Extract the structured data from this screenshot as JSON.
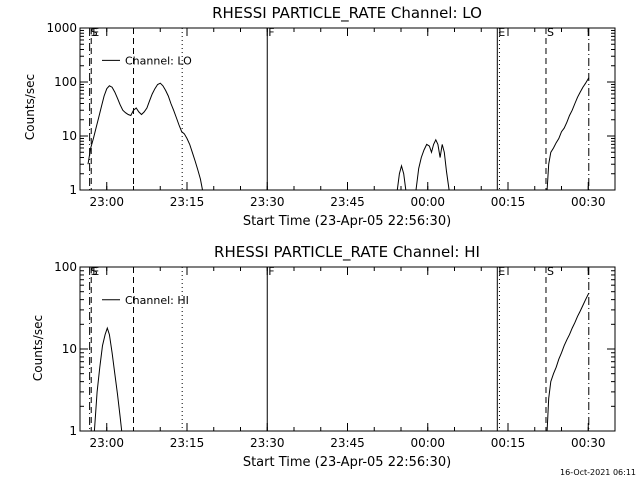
{
  "chart_data": [
    {
      "type": "line",
      "title": "RHESSI PARTICLE_RATE Channel: LO",
      "xlabel": "Start Time (23-Apr-05 22:56:30)",
      "ylabel": "Counts/sec",
      "yscale": "log",
      "ylim": [
        1,
        1000
      ],
      "xlim_minutes": [
        -1.5,
        98.5
      ],
      "y_ticks": [
        {
          "v": 1,
          "label": "1"
        },
        {
          "v": 10,
          "label": "10"
        },
        {
          "v": 100,
          "label": "100"
        },
        {
          "v": 1000,
          "label": "1000"
        }
      ],
      "x_ticks": [
        {
          "v": 3.5,
          "label": "23:00"
        },
        {
          "v": 18.5,
          "label": "23:15"
        },
        {
          "v": 33.5,
          "label": "23:30"
        },
        {
          "v": 48.5,
          "label": "23:45"
        },
        {
          "v": 63.5,
          "label": "00:00"
        },
        {
          "v": 78.5,
          "label": "00:15"
        },
        {
          "v": 93.5,
          "label": "00:30"
        }
      ],
      "legend": {
        "label": "Channel: LO",
        "position": "top-left"
      },
      "markers": [
        {
          "x": 0.3,
          "label": "S",
          "style": "dash-dot"
        },
        {
          "x": 0.6,
          "label": "E",
          "style": "dash"
        },
        {
          "x": 8.5,
          "label": "",
          "style": "dash"
        },
        {
          "x": 17.6,
          "label": "",
          "style": "dot"
        },
        {
          "x": 33.5,
          "label": "F",
          "style": "solid"
        },
        {
          "x": 76.5,
          "label": "E",
          "style": "solid"
        },
        {
          "x": 76.9,
          "label": "",
          "style": "dot"
        },
        {
          "x": 85.6,
          "label": "S",
          "style": "dash"
        },
        {
          "x": 93.6,
          "label": "",
          "style": "dash-dot"
        }
      ],
      "series": [
        {
          "segment": [
            [
              0.0,
              3
            ],
            [
              0.5,
              6
            ],
            [
              1.0,
              9
            ],
            [
              1.5,
              14
            ],
            [
              2.0,
              22
            ],
            [
              2.5,
              35
            ],
            [
              3.0,
              55
            ],
            [
              3.5,
              75
            ],
            [
              4.0,
              85
            ],
            [
              4.5,
              80
            ],
            [
              5.0,
              65
            ],
            [
              5.5,
              50
            ],
            [
              6.0,
              38
            ],
            [
              6.5,
              30
            ],
            [
              7.0,
              27
            ],
            [
              7.5,
              25
            ],
            [
              8.0,
              24
            ],
            [
              8.5,
              30
            ],
            [
              9.0,
              33
            ],
            [
              9.5,
              28
            ],
            [
              10.0,
              25
            ],
            [
              10.5,
              28
            ],
            [
              11.0,
              33
            ],
            [
              11.5,
              45
            ],
            [
              12.0,
              60
            ],
            [
              12.5,
              75
            ],
            [
              13.0,
              90
            ],
            [
              13.5,
              95
            ],
            [
              14.0,
              85
            ],
            [
              14.5,
              70
            ],
            [
              15.0,
              55
            ],
            [
              15.5,
              40
            ],
            [
              16.0,
              30
            ],
            [
              16.5,
              22
            ],
            [
              17.0,
              16
            ],
            [
              17.5,
              12
            ],
            [
              18.0,
              11
            ],
            [
              18.5,
              9
            ],
            [
              19.0,
              7
            ],
            [
              19.5,
              5
            ],
            [
              20.0,
              3.5
            ],
            [
              20.5,
              2.4
            ],
            [
              21.0,
              1.6
            ],
            [
              21.4,
              1
            ]
          ]
        },
        {
          "segment": [
            [
              57.8,
              1
            ],
            [
              58.2,
              2.0
            ],
            [
              58.6,
              2.8
            ],
            [
              59.0,
              2.0
            ],
            [
              59.4,
              1
            ]
          ]
        },
        {
          "segment": [
            [
              61.3,
              1
            ],
            [
              61.8,
              2.5
            ],
            [
              62.3,
              4
            ],
            [
              62.8,
              5.5
            ],
            [
              63.3,
              7
            ],
            [
              63.8,
              6.5
            ],
            [
              64.2,
              5
            ],
            [
              64.6,
              7
            ],
            [
              65.0,
              8.5
            ],
            [
              65.4,
              7
            ],
            [
              65.8,
              4
            ],
            [
              66.2,
              7
            ],
            [
              66.6,
              5
            ],
            [
              67.0,
              2.2
            ],
            [
              67.5,
              1
            ]
          ]
        },
        {
          "segment": [
            [
              85.8,
              1
            ],
            [
              86.1,
              3
            ],
            [
              86.5,
              5
            ],
            [
              87.0,
              6
            ],
            [
              87.5,
              7.5
            ],
            [
              88.0,
              9
            ],
            [
              88.5,
              12
            ],
            [
              89.0,
              14
            ],
            [
              89.5,
              18
            ],
            [
              90.0,
              24
            ],
            [
              90.5,
              30
            ],
            [
              91.0,
              40
            ],
            [
              91.5,
              52
            ],
            [
              92.0,
              65
            ],
            [
              92.5,
              80
            ],
            [
              93.0,
              95
            ],
            [
              93.6,
              120
            ]
          ]
        }
      ]
    },
    {
      "type": "line",
      "title": "RHESSI PARTICLE_RATE Channel: HI",
      "xlabel": "Start Time (23-Apr-05 22:56:30)",
      "ylabel": "Counts/sec",
      "yscale": "log",
      "ylim": [
        1,
        100
      ],
      "xlim_minutes": [
        -1.5,
        98.5
      ],
      "y_ticks": [
        {
          "v": 1,
          "label": "1"
        },
        {
          "v": 10,
          "label": "10"
        },
        {
          "v": 100,
          "label": "100"
        }
      ],
      "x_ticks": [
        {
          "v": 3.5,
          "label": "23:00"
        },
        {
          "v": 18.5,
          "label": "23:15"
        },
        {
          "v": 33.5,
          "label": "23:30"
        },
        {
          "v": 48.5,
          "label": "23:45"
        },
        {
          "v": 63.5,
          "label": "00:00"
        },
        {
          "v": 78.5,
          "label": "00:15"
        },
        {
          "v": 93.5,
          "label": "00:30"
        }
      ],
      "legend": {
        "label": "Channel: HI",
        "position": "top-left"
      },
      "markers": [
        {
          "x": 0.3,
          "label": "S",
          "style": "dash-dot"
        },
        {
          "x": 0.6,
          "label": "E",
          "style": "dash"
        },
        {
          "x": 8.5,
          "label": "",
          "style": "dash"
        },
        {
          "x": 17.6,
          "label": "",
          "style": "dot"
        },
        {
          "x": 33.5,
          "label": "F",
          "style": "solid"
        },
        {
          "x": 76.5,
          "label": "E",
          "style": "solid"
        },
        {
          "x": 76.9,
          "label": "",
          "style": "dot"
        },
        {
          "x": 85.6,
          "label": "S",
          "style": "dash"
        },
        {
          "x": 93.6,
          "label": "",
          "style": "dash-dot"
        }
      ],
      "series": [
        {
          "segment": [
            [
              1.2,
              1
            ],
            [
              1.7,
              3
            ],
            [
              2.2,
              6
            ],
            [
              2.7,
              11
            ],
            [
              3.2,
              15
            ],
            [
              3.6,
              18
            ],
            [
              4.0,
              15
            ],
            [
              4.5,
              9
            ],
            [
              5.0,
              5
            ],
            [
              5.5,
              2.8
            ],
            [
              6.0,
              1.5
            ],
            [
              6.3,
              1
            ]
          ]
        },
        {
          "segment": [
            [
              85.8,
              1
            ],
            [
              86.1,
              2.5
            ],
            [
              86.5,
              4
            ],
            [
              87.0,
              5
            ],
            [
              87.5,
              6
            ],
            [
              88.0,
              7.5
            ],
            [
              88.5,
              9
            ],
            [
              89.0,
              11
            ],
            [
              89.5,
              13
            ],
            [
              90.0,
              15
            ],
            [
              90.5,
              18
            ],
            [
              91.0,
              21
            ],
            [
              91.5,
              25
            ],
            [
              92.0,
              29
            ],
            [
              92.5,
              34
            ],
            [
              93.0,
              40
            ],
            [
              93.6,
              48
            ]
          ]
        }
      ]
    }
  ],
  "footer": {
    "date": "16-Oct-2021 06:11"
  }
}
